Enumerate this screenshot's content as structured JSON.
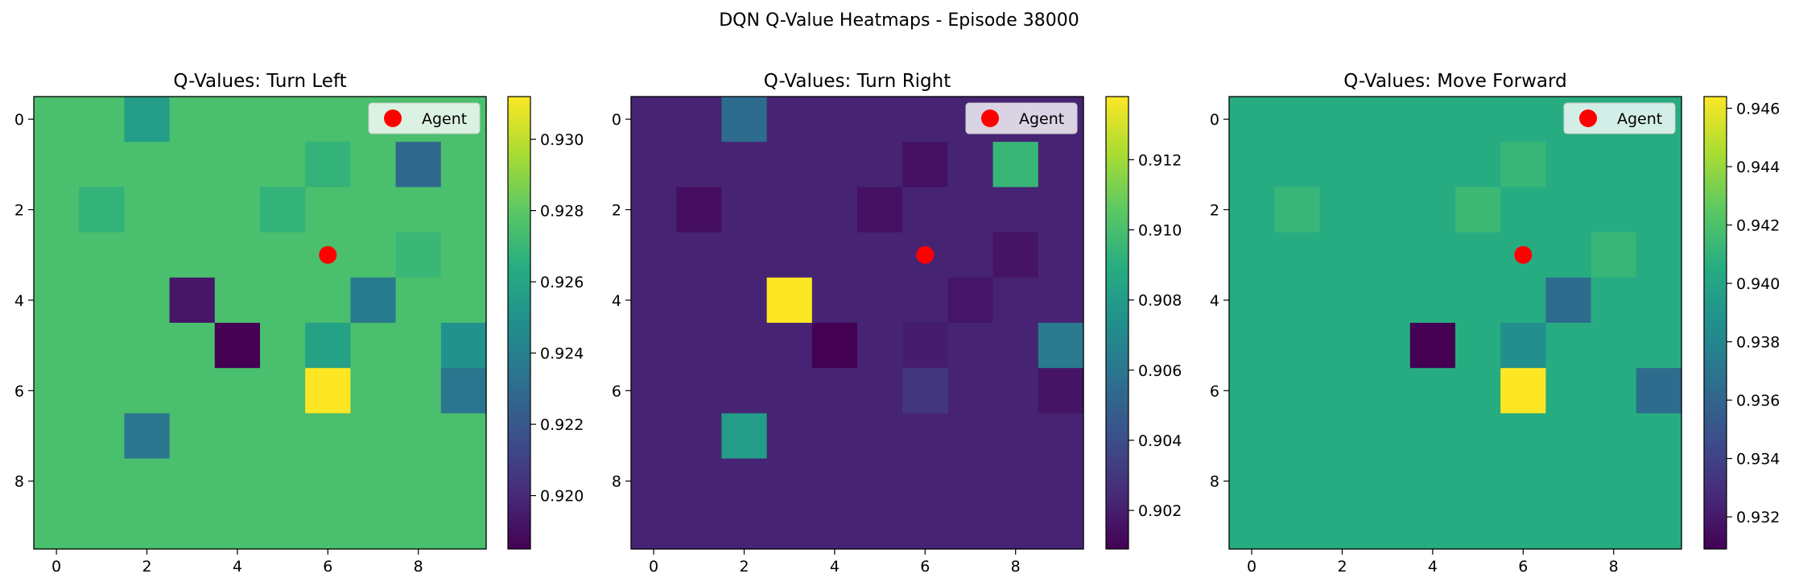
{
  "figure": {
    "suptitle": "DQN Q-Value Heatmaps - Episode 38000"
  },
  "colors": {
    "agent_marker": "#ff0000",
    "colormap": "viridis"
  },
  "chart_data": [
    {
      "type": "heatmap",
      "title": "Q-Values: Turn Left",
      "x_ticks": [
        "0",
        "2",
        "4",
        "6",
        "8"
      ],
      "y_ticks": [
        "0",
        "2",
        "4",
        "6",
        "8"
      ],
      "xlim": [
        -0.5,
        9.5
      ],
      "ylim": [
        9.5,
        -0.5
      ],
      "legend": {
        "label": "Agent",
        "placement": "top-right"
      },
      "agent": {
        "x": 6,
        "y": 3
      },
      "colorbar": {
        "min": 0.9185,
        "max": 0.9312,
        "ticks": [
          "0.920",
          "0.922",
          "0.924",
          "0.926",
          "0.928",
          "0.930"
        ]
      },
      "values": [
        [
          0.9275,
          0.9275,
          0.9255,
          0.9275,
          0.9275,
          0.9275,
          0.9275,
          0.9275,
          0.9275,
          0.9275
        ],
        [
          0.9275,
          0.9275,
          0.9275,
          0.9275,
          0.9275,
          0.9275,
          0.9268,
          0.9275,
          0.9228,
          0.9275
        ],
        [
          0.9275,
          0.9268,
          0.9275,
          0.9275,
          0.9275,
          0.9268,
          0.9275,
          0.9275,
          0.9275,
          0.9275
        ],
        [
          0.9275,
          0.9275,
          0.9275,
          0.9275,
          0.9275,
          0.9275,
          0.9275,
          0.9275,
          0.927,
          0.9275
        ],
        [
          0.9275,
          0.9275,
          0.9275,
          0.9193,
          0.9275,
          0.9275,
          0.9275,
          0.9238,
          0.9275,
          0.9275
        ],
        [
          0.9275,
          0.9275,
          0.9275,
          0.9275,
          0.9185,
          0.9275,
          0.9258,
          0.9275,
          0.9275,
          0.925
        ],
        [
          0.9275,
          0.9275,
          0.9275,
          0.9275,
          0.9275,
          0.9275,
          0.9312,
          0.9275,
          0.9275,
          0.9235
        ],
        [
          0.9275,
          0.9275,
          0.9235,
          0.9275,
          0.9275,
          0.9275,
          0.9275,
          0.9275,
          0.9275,
          0.9275
        ],
        [
          0.9275,
          0.9275,
          0.9275,
          0.9275,
          0.9275,
          0.9275,
          0.9275,
          0.9275,
          0.9275,
          0.9275
        ],
        [
          0.9275,
          0.9275,
          0.9275,
          0.9275,
          0.9275,
          0.9275,
          0.9275,
          0.9275,
          0.9275,
          0.9275
        ]
      ]
    },
    {
      "type": "heatmap",
      "title": "Q-Values: Turn Right",
      "x_ticks": [
        "0",
        "2",
        "4",
        "6",
        "8"
      ],
      "y_ticks": [
        "0",
        "2",
        "4",
        "6",
        "8"
      ],
      "xlim": [
        -0.5,
        9.5
      ],
      "ylim": [
        9.5,
        -0.5
      ],
      "legend": {
        "label": "Agent",
        "placement": "top-right"
      },
      "agent": {
        "x": 6,
        "y": 3
      },
      "colorbar": {
        "min": 0.9009,
        "max": 0.9138,
        "ticks": [
          "0.902",
          "0.904",
          "0.906",
          "0.908",
          "0.910",
          "0.912"
        ]
      },
      "values": [
        [
          0.9022,
          0.9022,
          0.9055,
          0.9022,
          0.9022,
          0.9022,
          0.9022,
          0.9022,
          0.9022,
          0.9022
        ],
        [
          0.9022,
          0.9022,
          0.9022,
          0.9022,
          0.9022,
          0.9022,
          0.9015,
          0.9022,
          0.9095,
          0.9022
        ],
        [
          0.9022,
          0.9014,
          0.9022,
          0.9022,
          0.9022,
          0.9015,
          0.9022,
          0.9022,
          0.9022,
          0.9022
        ],
        [
          0.9022,
          0.9022,
          0.9022,
          0.9022,
          0.9022,
          0.9022,
          0.9022,
          0.9022,
          0.9016,
          0.9022
        ],
        [
          0.9022,
          0.9022,
          0.9022,
          0.9138,
          0.9022,
          0.9022,
          0.9022,
          0.9017,
          0.9022,
          0.9022
        ],
        [
          0.9022,
          0.9022,
          0.9022,
          0.9022,
          0.9009,
          0.9022,
          0.9019,
          0.9022,
          0.9022,
          0.9062
        ],
        [
          0.9022,
          0.9022,
          0.9022,
          0.9022,
          0.9022,
          0.9022,
          0.903,
          0.9022,
          0.9022,
          0.9016
        ],
        [
          0.9022,
          0.9022,
          0.908,
          0.9022,
          0.9022,
          0.9022,
          0.9022,
          0.9022,
          0.9022,
          0.9022
        ],
        [
          0.9022,
          0.9022,
          0.9022,
          0.9022,
          0.9022,
          0.9022,
          0.9022,
          0.9022,
          0.9022,
          0.9022
        ],
        [
          0.9022,
          0.9022,
          0.9022,
          0.9022,
          0.9022,
          0.9022,
          0.9022,
          0.9022,
          0.9022,
          0.9022
        ]
      ]
    },
    {
      "type": "heatmap",
      "title": "Q-Values: Move Forward",
      "x_ticks": [
        "0",
        "2",
        "4",
        "6",
        "8"
      ],
      "y_ticks": [
        "0",
        "2",
        "4",
        "6",
        "8"
      ],
      "xlim": [
        -0.5,
        9.5
      ],
      "ylim": [
        9.5,
        -0.5
      ],
      "legend": {
        "label": "Agent",
        "placement": "top-right"
      },
      "agent": {
        "x": 6,
        "y": 3
      },
      "colorbar": {
        "min": 0.9309,
        "max": 0.9464,
        "ticks": [
          "0.932",
          "0.934",
          "0.936",
          "0.938",
          "0.940",
          "0.942",
          "0.944",
          "0.946"
        ]
      },
      "values": [
        [
          0.9405,
          0.9405,
          0.9405,
          0.9405,
          0.9405,
          0.9405,
          0.9405,
          0.9405,
          0.9405,
          0.9405
        ],
        [
          0.9405,
          0.9405,
          0.9405,
          0.9405,
          0.9405,
          0.9405,
          0.9412,
          0.9405,
          0.9405,
          0.9405
        ],
        [
          0.9405,
          0.9412,
          0.9405,
          0.9405,
          0.9405,
          0.9414,
          0.9405,
          0.9405,
          0.9405,
          0.9405
        ],
        [
          0.9405,
          0.9405,
          0.9405,
          0.9405,
          0.9405,
          0.9405,
          0.9405,
          0.9405,
          0.9412,
          0.9405
        ],
        [
          0.9405,
          0.9405,
          0.9405,
          0.9405,
          0.9405,
          0.9405,
          0.9405,
          0.9364,
          0.9405,
          0.9405
        ],
        [
          0.9405,
          0.9405,
          0.9405,
          0.9405,
          0.9309,
          0.9405,
          0.9385,
          0.9405,
          0.9405,
          0.9405
        ],
        [
          0.9405,
          0.9405,
          0.9405,
          0.9405,
          0.9405,
          0.9405,
          0.9464,
          0.9405,
          0.9405,
          0.9364
        ],
        [
          0.9405,
          0.9405,
          0.9405,
          0.9405,
          0.9405,
          0.9405,
          0.9405,
          0.9405,
          0.9405,
          0.9405
        ],
        [
          0.9405,
          0.9405,
          0.9405,
          0.9405,
          0.9405,
          0.9405,
          0.9405,
          0.9405,
          0.9405,
          0.9405
        ],
        [
          0.9405,
          0.9405,
          0.9405,
          0.9405,
          0.9405,
          0.9405,
          0.9405,
          0.9405,
          0.9405,
          0.9405
        ]
      ]
    }
  ]
}
